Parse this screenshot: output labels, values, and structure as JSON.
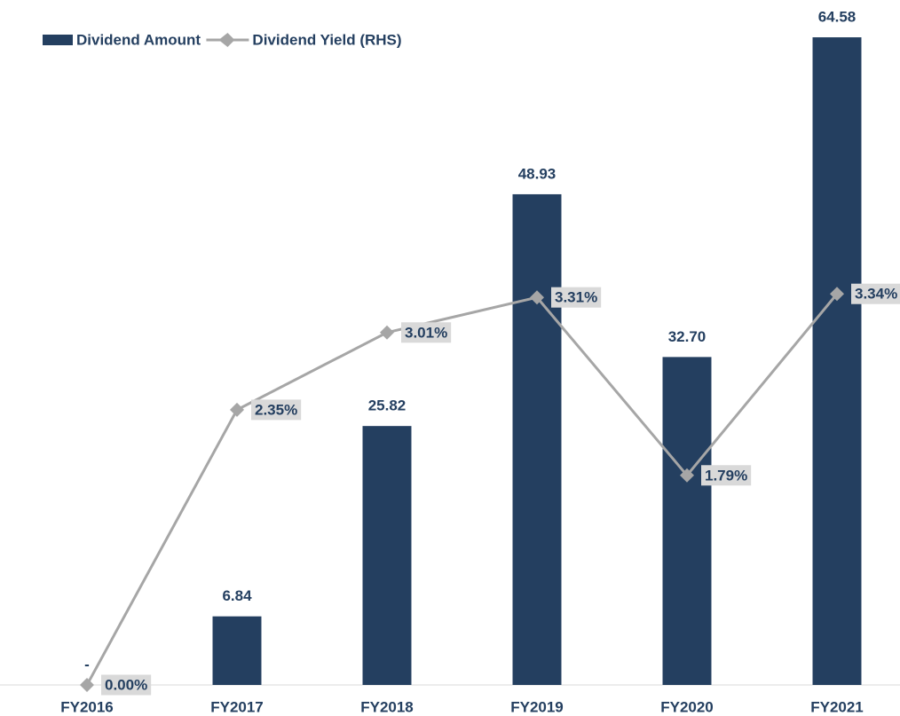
{
  "chart_data": {
    "type": "bar_line",
    "categories": [
      "FY2016",
      "FY2017",
      "FY2018",
      "FY2019",
      "FY2020",
      "FY2021"
    ],
    "ylim": [
      0,
      68.3
    ],
    "y2lim": [
      0,
      5.85
    ],
    "series": [
      {
        "name": "Dividend Amount",
        "type": "bar",
        "color": "#243f60",
        "values": [
          0,
          6.84,
          25.82,
          48.93,
          32.7,
          64.58
        ],
        "value_labels": [
          "-",
          "6.84",
          "25.82",
          "48.93",
          "32.70",
          "64.58"
        ]
      },
      {
        "name": "Dividend Yield (RHS)",
        "type": "line",
        "axis": "y2",
        "color": "#a6a6a6",
        "values": [
          0,
          2.35,
          3.01,
          3.31,
          1.79,
          3.34
        ],
        "value_labels": [
          "0.00%",
          "2.35%",
          "3.01%",
          "3.31%",
          "1.79%",
          "3.34%"
        ]
      }
    ]
  }
}
